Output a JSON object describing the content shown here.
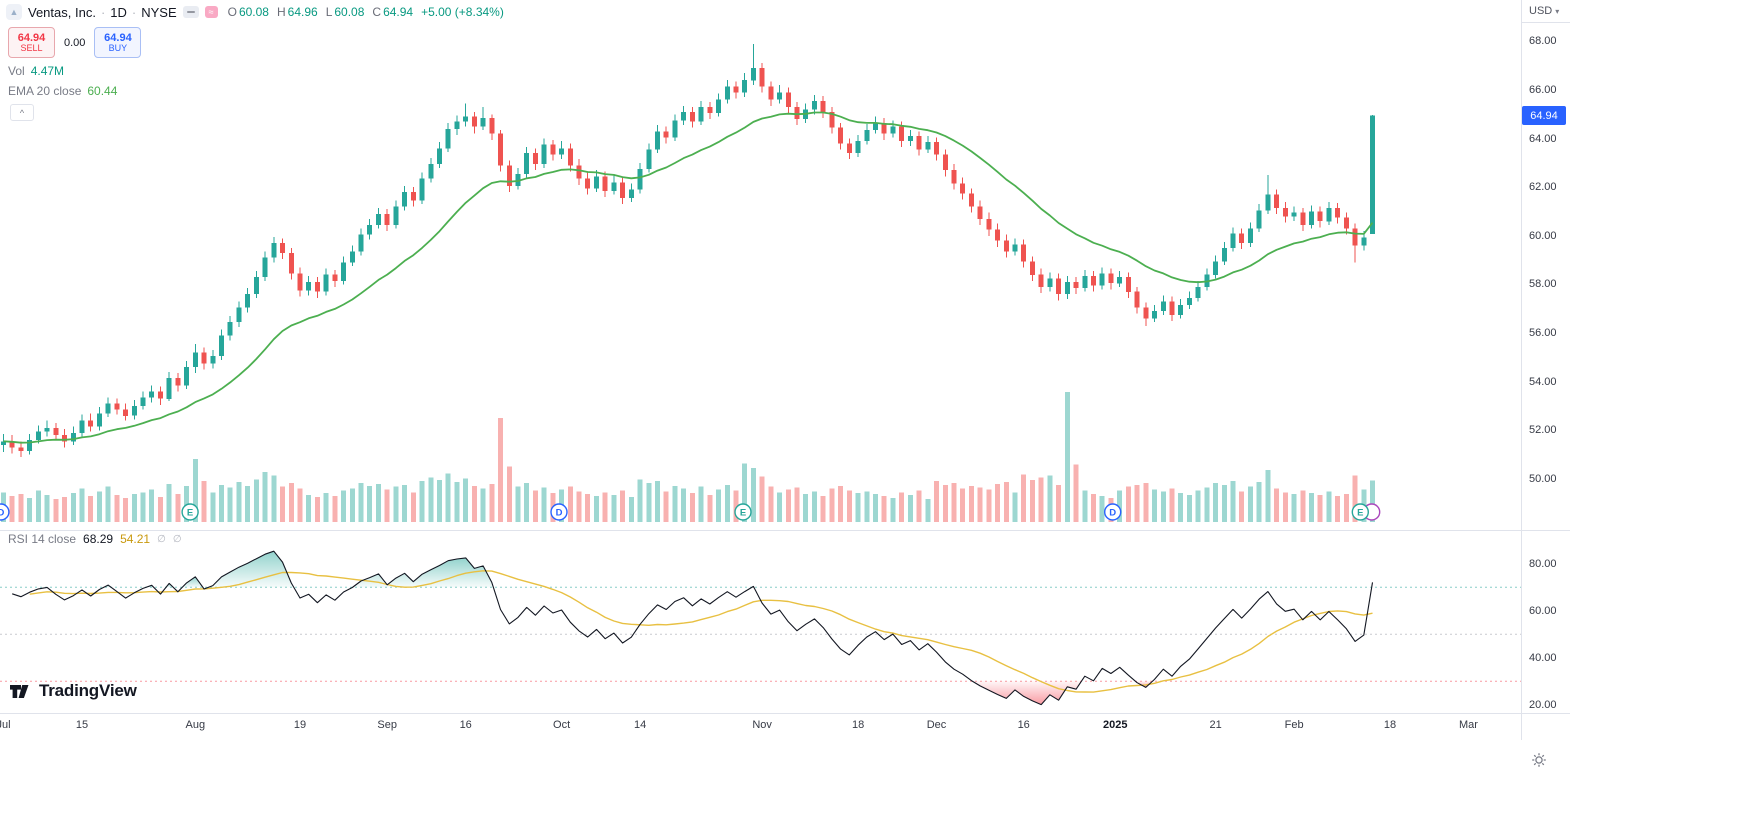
{
  "symbol": {
    "name": "Ventas, Inc.",
    "separator": "·",
    "interval": "1D",
    "exchange": "NYSE"
  },
  "ohlc": {
    "o_label": "O",
    "o": "60.08",
    "h_label": "H",
    "h": "64.96",
    "l_label": "L",
    "l": "60.08",
    "c_label": "C",
    "c": "64.94",
    "change": "+5.00 (+8.34%)"
  },
  "trade": {
    "sell_price": "64.94",
    "sell_label": "SELL",
    "spread": "0.00",
    "buy_price": "64.94",
    "buy_label": "BUY"
  },
  "indicators": {
    "volume": {
      "label": "Vol",
      "value": "4.47M"
    },
    "ema": {
      "label": "EMA 20 close",
      "value": "60.44"
    },
    "rsi": {
      "label": "RSI 14 close",
      "value": "68.29",
      "ma_value": "54.21",
      "empty1": "∅",
      "empty2": "∅"
    }
  },
  "axis": {
    "currency": "USD",
    "last_price": "64.94",
    "price_labels": [
      "68.00",
      "66.00",
      "64.00",
      "62.00",
      "60.00",
      "58.00",
      "56.00",
      "54.00",
      "52.00",
      "50.00"
    ],
    "rsi_labels": [
      "80.00",
      "60.00",
      "40.00",
      "20.00"
    ],
    "time_labels": [
      {
        "t": "Jul",
        "i": 0
      },
      {
        "t": "15",
        "i": 9
      },
      {
        "t": "Aug",
        "i": 22
      },
      {
        "t": "19",
        "i": 34
      },
      {
        "t": "Sep",
        "i": 44
      },
      {
        "t": "16",
        "i": 53
      },
      {
        "t": "Oct",
        "i": 64
      },
      {
        "t": "14",
        "i": 73
      },
      {
        "t": "Nov",
        "i": 87
      },
      {
        "t": "18",
        "i": 98
      },
      {
        "t": "Dec",
        "i": 107
      },
      {
        "t": "16",
        "i": 117
      },
      {
        "t": "2025",
        "i": 127.5,
        "bold": true
      },
      {
        "t": "21",
        "i": 139
      },
      {
        "t": "Feb",
        "i": 148
      },
      {
        "t": "18",
        "i": 159
      },
      {
        "t": "Mar",
        "i": 168
      }
    ]
  },
  "watermark": {
    "text": "TradingView"
  },
  "chart_data": {
    "type": "candlestick",
    "title": "Ventas, Inc. · 1D · NYSE",
    "interval": "1D",
    "price_ylim": [
      47.9,
      69.7
    ],
    "rsi_ylim": [
      16.5,
      94.4
    ],
    "volume_max_m": 14.0,
    "ema_period": 20,
    "ema_last": 60.44,
    "rsi_period": 14,
    "rsi_last": 68.29,
    "rsi_ma_last": 54.21,
    "volume_last_m": 4.47,
    "bands": {
      "upper": 70,
      "middle": 50,
      "lower": 30
    },
    "colors": {
      "up": "#26a69a",
      "down": "#ef5350",
      "vol_up": "rgba(38,166,154,0.45)",
      "vol_down": "rgba(239,83,80,0.45)",
      "ema": "#4caf50",
      "rsi": "#131722",
      "rsi_ma": "#e8c042",
      "band_upper": "#26a69a",
      "band_mid": "#787b86",
      "band_lower": "#f23645",
      "tag": "#2962ff",
      "event_d": "#2962ff",
      "event_e": "#26a69a",
      "event_next": "#ab47bc"
    },
    "candles": [
      [
        51.4,
        51.85,
        51.1,
        51.55,
        3.2
      ],
      [
        51.55,
        51.8,
        51.05,
        51.3,
        2.8
      ],
      [
        51.3,
        51.55,
        50.9,
        51.15,
        3.0
      ],
      [
        51.15,
        51.85,
        51.0,
        51.6,
        2.6
      ],
      [
        51.6,
        52.2,
        51.45,
        51.95,
        3.4
      ],
      [
        51.95,
        52.4,
        51.75,
        52.1,
        2.9
      ],
      [
        52.1,
        52.3,
        51.6,
        51.8,
        2.5
      ],
      [
        51.8,
        52.05,
        51.3,
        51.55,
        2.7
      ],
      [
        51.55,
        52.15,
        51.4,
        51.9,
        3.1
      ],
      [
        51.9,
        52.65,
        51.75,
        52.4,
        3.6
      ],
      [
        52.4,
        52.7,
        51.95,
        52.15,
        2.8
      ],
      [
        52.15,
        52.95,
        52.0,
        52.7,
        3.3
      ],
      [
        52.7,
        53.35,
        52.55,
        53.1,
        3.8
      ],
      [
        53.1,
        53.3,
        52.65,
        52.85,
        2.9
      ],
      [
        52.85,
        53.1,
        52.4,
        52.6,
        2.6
      ],
      [
        52.6,
        53.25,
        52.45,
        53.0,
        3.0
      ],
      [
        53.0,
        53.6,
        52.85,
        53.35,
        3.2
      ],
      [
        53.35,
        53.85,
        53.15,
        53.6,
        3.5
      ],
      [
        53.6,
        53.8,
        53.05,
        53.3,
        2.7
      ],
      [
        53.3,
        54.4,
        53.2,
        54.15,
        4.1
      ],
      [
        54.15,
        54.35,
        53.6,
        53.85,
        3.0
      ],
      [
        53.85,
        54.85,
        53.7,
        54.6,
        3.9
      ],
      [
        54.6,
        55.55,
        54.35,
        55.2,
        6.8
      ],
      [
        55.2,
        55.4,
        54.5,
        54.75,
        4.4
      ],
      [
        54.75,
        55.3,
        54.55,
        55.05,
        3.2
      ],
      [
        55.05,
        56.15,
        54.9,
        55.9,
        4.0
      ],
      [
        55.9,
        56.7,
        55.7,
        56.45,
        3.7
      ],
      [
        56.45,
        57.3,
        56.25,
        57.05,
        4.3
      ],
      [
        57.05,
        57.85,
        56.85,
        57.6,
        3.9
      ],
      [
        57.6,
        58.55,
        57.45,
        58.3,
        4.6
      ],
      [
        58.3,
        59.35,
        58.15,
        59.1,
        5.4
      ],
      [
        59.1,
        59.95,
        58.9,
        59.7,
        5.0
      ],
      [
        59.7,
        59.9,
        59.05,
        59.3,
        3.8
      ],
      [
        59.3,
        59.5,
        58.2,
        58.45,
        4.2
      ],
      [
        58.45,
        58.7,
        57.5,
        57.75,
        3.6
      ],
      [
        57.75,
        58.35,
        57.55,
        58.1,
        2.9
      ],
      [
        58.1,
        58.3,
        57.45,
        57.7,
        2.7
      ],
      [
        57.7,
        58.65,
        57.55,
        58.4,
        3.1
      ],
      [
        58.4,
        58.6,
        57.9,
        58.15,
        2.8
      ],
      [
        58.15,
        59.15,
        58.0,
        58.9,
        3.4
      ],
      [
        58.9,
        59.6,
        58.75,
        59.35,
        3.6
      ],
      [
        59.35,
        60.3,
        59.2,
        60.05,
        4.2
      ],
      [
        60.05,
        60.7,
        59.85,
        60.45,
        3.9
      ],
      [
        60.45,
        61.15,
        60.3,
        60.9,
        4.1
      ],
      [
        60.9,
        61.1,
        60.2,
        60.45,
        3.5
      ],
      [
        60.45,
        61.45,
        60.3,
        61.2,
        3.8
      ],
      [
        61.2,
        62.05,
        61.05,
        61.8,
        4.0
      ],
      [
        61.8,
        62.0,
        61.2,
        61.45,
        3.2
      ],
      [
        61.45,
        62.6,
        61.3,
        62.35,
        4.4
      ],
      [
        62.35,
        63.2,
        62.2,
        62.95,
        4.8
      ],
      [
        62.95,
        63.85,
        62.8,
        63.6,
        4.5
      ],
      [
        63.6,
        64.65,
        63.45,
        64.4,
        5.2
      ],
      [
        64.4,
        64.95,
        64.15,
        64.7,
        4.3
      ],
      [
        64.7,
        65.45,
        64.5,
        64.9,
        4.7
      ],
      [
        64.9,
        65.1,
        64.2,
        64.5,
        3.9
      ],
      [
        64.5,
        65.3,
        64.35,
        64.85,
        3.6
      ],
      [
        64.85,
        65.0,
        63.95,
        64.2,
        4.1
      ],
      [
        64.2,
        64.35,
        62.65,
        62.9,
        11.2
      ],
      [
        62.9,
        63.1,
        61.8,
        62.05,
        6.0
      ],
      [
        62.05,
        62.8,
        61.9,
        62.55,
        3.8
      ],
      [
        62.55,
        63.65,
        62.4,
        63.4,
        4.2
      ],
      [
        63.4,
        63.6,
        62.7,
        62.95,
        3.4
      ],
      [
        62.95,
        64.0,
        62.8,
        63.75,
        3.7
      ],
      [
        63.75,
        63.95,
        63.1,
        63.35,
        3.1
      ],
      [
        63.35,
        63.9,
        63.15,
        63.6,
        3.5
      ],
      [
        63.6,
        63.8,
        62.65,
        62.9,
        3.8
      ],
      [
        62.9,
        63.15,
        62.1,
        62.35,
        3.3
      ],
      [
        62.35,
        62.6,
        61.7,
        61.95,
        3.0
      ],
      [
        61.95,
        62.7,
        61.8,
        62.45,
        2.8
      ],
      [
        62.45,
        62.65,
        61.6,
        61.85,
        3.2
      ],
      [
        61.85,
        62.5,
        61.7,
        62.2,
        2.9
      ],
      [
        62.2,
        62.4,
        61.3,
        61.55,
        3.4
      ],
      [
        61.55,
        62.15,
        61.4,
        61.9,
        2.7
      ],
      [
        61.9,
        63.0,
        61.75,
        62.75,
        4.6
      ],
      [
        62.75,
        63.8,
        62.6,
        63.55,
        4.2
      ],
      [
        63.55,
        64.55,
        63.4,
        64.3,
        4.4
      ],
      [
        64.3,
        64.5,
        63.8,
        64.05,
        3.3
      ],
      [
        64.05,
        65.0,
        63.9,
        64.75,
        3.9
      ],
      [
        64.75,
        65.35,
        64.55,
        65.1,
        3.6
      ],
      [
        65.1,
        65.3,
        64.45,
        64.7,
        3.1
      ],
      [
        64.7,
        65.55,
        64.55,
        65.3,
        3.8
      ],
      [
        65.3,
        65.5,
        64.8,
        65.05,
        2.9
      ],
      [
        65.05,
        65.85,
        64.9,
        65.6,
        3.5
      ],
      [
        65.6,
        66.4,
        65.45,
        66.15,
        4.0
      ],
      [
        66.15,
        66.35,
        65.65,
        65.9,
        3.4
      ],
      [
        65.9,
        66.7,
        65.7,
        66.4,
        6.3
      ],
      [
        66.4,
        67.9,
        66.2,
        66.9,
        5.8
      ],
      [
        66.9,
        67.1,
        65.9,
        66.15,
        4.9
      ],
      [
        66.15,
        66.35,
        65.35,
        65.6,
        3.8
      ],
      [
        65.6,
        66.2,
        65.45,
        65.9,
        3.2
      ],
      [
        65.9,
        66.1,
        65.05,
        65.3,
        3.5
      ],
      [
        65.3,
        65.5,
        64.55,
        64.8,
        3.7
      ],
      [
        64.8,
        65.45,
        64.65,
        65.2,
        3.0
      ],
      [
        65.2,
        65.8,
        65.0,
        65.55,
        3.3
      ],
      [
        65.55,
        65.75,
        64.85,
        65.1,
        2.8
      ],
      [
        65.1,
        65.3,
        64.2,
        64.45,
        3.6
      ],
      [
        64.45,
        64.65,
        63.55,
        63.8,
        3.9
      ],
      [
        63.8,
        64.0,
        63.15,
        63.4,
        3.4
      ],
      [
        63.4,
        64.15,
        63.25,
        63.9,
        3.1
      ],
      [
        63.9,
        64.6,
        63.75,
        64.35,
        3.3
      ],
      [
        64.35,
        64.9,
        64.2,
        64.65,
        3.0
      ],
      [
        64.65,
        64.85,
        63.95,
        64.2,
        2.8
      ],
      [
        64.2,
        64.75,
        64.05,
        64.5,
        2.6
      ],
      [
        64.5,
        64.7,
        63.65,
        63.9,
        3.2
      ],
      [
        63.9,
        64.35,
        63.7,
        64.1,
        2.9
      ],
      [
        64.1,
        64.3,
        63.3,
        63.55,
        3.4
      ],
      [
        63.55,
        64.1,
        63.4,
        63.85,
        2.5
      ],
      [
        63.85,
        64.05,
        63.1,
        63.35,
        4.4
      ],
      [
        63.35,
        63.55,
        62.45,
        62.7,
        4.0
      ],
      [
        62.7,
        62.95,
        61.9,
        62.15,
        4.2
      ],
      [
        62.15,
        62.4,
        61.5,
        61.75,
        3.6
      ],
      [
        61.75,
        61.95,
        60.95,
        61.2,
        3.9
      ],
      [
        61.2,
        61.45,
        60.45,
        60.7,
        3.7
      ],
      [
        60.7,
        60.95,
        60.0,
        60.25,
        3.5
      ],
      [
        60.25,
        60.5,
        59.55,
        59.8,
        4.1
      ],
      [
        59.8,
        60.05,
        59.1,
        59.35,
        4.3
      ],
      [
        59.35,
        59.9,
        59.2,
        59.65,
        3.2
      ],
      [
        59.65,
        59.85,
        58.7,
        58.95,
        5.1
      ],
      [
        58.95,
        59.15,
        58.15,
        58.4,
        4.5
      ],
      [
        58.4,
        58.65,
        57.65,
        57.9,
        4.8
      ],
      [
        57.9,
        58.5,
        57.7,
        58.25,
        5.0
      ],
      [
        58.25,
        58.45,
        57.35,
        57.6,
        4.0
      ],
      [
        57.6,
        58.35,
        57.4,
        58.1,
        14.0
      ],
      [
        58.1,
        58.3,
        57.6,
        57.85,
        6.2
      ],
      [
        57.85,
        58.6,
        57.7,
        58.35,
        3.4
      ],
      [
        58.35,
        58.55,
        57.7,
        57.95,
        3.0
      ],
      [
        57.95,
        58.7,
        57.8,
        58.45,
        2.8
      ],
      [
        58.45,
        58.65,
        57.8,
        58.05,
        2.6
      ],
      [
        58.05,
        58.55,
        57.9,
        58.3,
        3.4
      ],
      [
        58.3,
        58.5,
        57.45,
        57.7,
        3.8
      ],
      [
        57.7,
        57.9,
        56.8,
        57.05,
        4.0
      ],
      [
        57.05,
        57.25,
        56.3,
        56.6,
        4.2
      ],
      [
        56.6,
        57.15,
        56.45,
        56.9,
        3.5
      ],
      [
        56.9,
        57.55,
        56.75,
        57.3,
        3.3
      ],
      [
        57.3,
        57.5,
        56.5,
        56.75,
        3.6
      ],
      [
        56.75,
        57.4,
        56.6,
        57.15,
        3.1
      ],
      [
        57.15,
        57.7,
        57.0,
        57.45,
        2.9
      ],
      [
        57.45,
        58.15,
        57.3,
        57.9,
        3.4
      ],
      [
        57.9,
        58.65,
        57.75,
        58.4,
        3.7
      ],
      [
        58.4,
        59.2,
        58.25,
        58.95,
        4.2
      ],
      [
        58.95,
        59.75,
        58.8,
        59.5,
        4.0
      ],
      [
        59.5,
        60.35,
        59.35,
        60.1,
        4.4
      ],
      [
        60.1,
        60.3,
        59.45,
        59.7,
        3.3
      ],
      [
        59.7,
        60.55,
        59.55,
        60.3,
        3.8
      ],
      [
        60.3,
        61.3,
        60.15,
        61.05,
        4.3
      ],
      [
        61.05,
        62.5,
        60.9,
        61.7,
        5.6
      ],
      [
        61.7,
        61.9,
        60.9,
        61.15,
        3.6
      ],
      [
        61.15,
        61.4,
        60.55,
        60.8,
        3.2
      ],
      [
        60.8,
        61.2,
        60.6,
        60.95,
        3.0
      ],
      [
        60.95,
        61.15,
        60.2,
        60.45,
        3.4
      ],
      [
        60.45,
        61.25,
        60.3,
        61.0,
        3.1
      ],
      [
        61.0,
        61.2,
        60.35,
        60.6,
        2.9
      ],
      [
        60.6,
        61.4,
        60.45,
        61.15,
        3.3
      ],
      [
        61.15,
        61.35,
        60.5,
        60.75,
        2.8
      ],
      [
        60.75,
        60.95,
        60.05,
        60.3,
        3.0
      ],
      [
        60.3,
        60.5,
        58.9,
        59.6,
        5.0
      ],
      [
        59.6,
        60.2,
        59.4,
        59.94,
        3.5
      ],
      [
        60.08,
        64.96,
        60.08,
        64.94,
        4.47
      ]
    ],
    "events": [
      {
        "i": -0.3,
        "t": "D",
        "key": "event_d"
      },
      {
        "i": 21.4,
        "t": "E",
        "key": "event_e"
      },
      {
        "i": 63.7,
        "t": "D",
        "key": "event_d"
      },
      {
        "i": 84.8,
        "t": "E",
        "key": "event_e"
      },
      {
        "i": 127.2,
        "t": "D",
        "key": "event_d"
      },
      {
        "i": 156.9,
        "t": "",
        "key": "event_next"
      },
      {
        "i": 155.6,
        "t": "E",
        "key": "event_e"
      }
    ]
  }
}
